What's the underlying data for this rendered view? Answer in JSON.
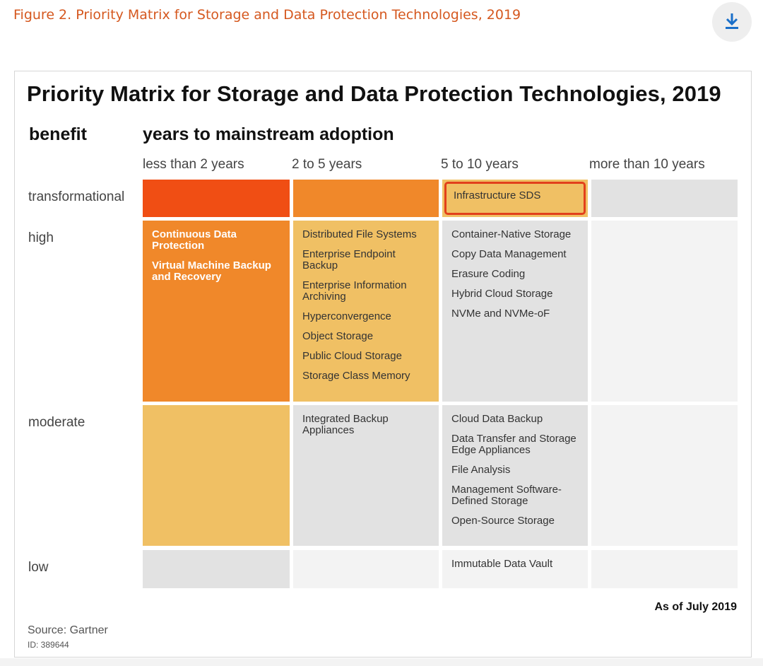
{
  "caption": "Figure 2. Priority Matrix for Storage and Data Protection Technologies, 2019",
  "download_icon": "download-icon",
  "title": "Priority Matrix for Storage  and Data Protection Technologies, 2019",
  "benefit_label": "benefit",
  "years_label": "years to mainstream adoption",
  "columns": [
    "less than 2 years",
    "2 to 5 years",
    "5 to 10 years",
    "more than 10 years"
  ],
  "rows": [
    "transformational",
    "high",
    "moderate",
    "low"
  ],
  "cells": {
    "transformational": {
      "c3": [
        "Infrastructure SDS"
      ]
    },
    "high": {
      "c1": [
        "Continuous Data Protection",
        "Virtual Machine Backup and Recovery"
      ],
      "c2": [
        "Distributed File Systems",
        "Enterprise Endpoint Backup",
        "Enterprise Information Archiving",
        "Hyperconvergence",
        "Object Storage",
        "Public Cloud Storage",
        "Storage Class Memory"
      ],
      "c3": [
        "Container-Native Storage",
        "Copy Data Management",
        "Erasure Coding",
        "Hybrid Cloud Storage",
        "NVMe and NVMe-oF"
      ]
    },
    "moderate": {
      "c2": [
        "Integrated Backup Appliances"
      ],
      "c3": [
        "Cloud Data Backup",
        "Data Transfer and Storage Edge Appliances",
        "File Analysis",
        "Management Software-Defined Storage",
        "Open-Source Storage"
      ]
    },
    "low": {
      "c3": [
        "Immutable Data Vault"
      ]
    }
  },
  "colors": {
    "red_orange": "#f04e14",
    "orange": "#f0882a",
    "light_orange": "#f0c064",
    "grey": "#e2e2e2",
    "light_grey": "#f3f3f3",
    "highlight_border": "#e2401b",
    "caption": "#d5581f",
    "download_icon": "#1a6fc9"
  },
  "as_of": "As of July 2019",
  "source": "Source: Gartner",
  "source_id": "ID: 389644"
}
